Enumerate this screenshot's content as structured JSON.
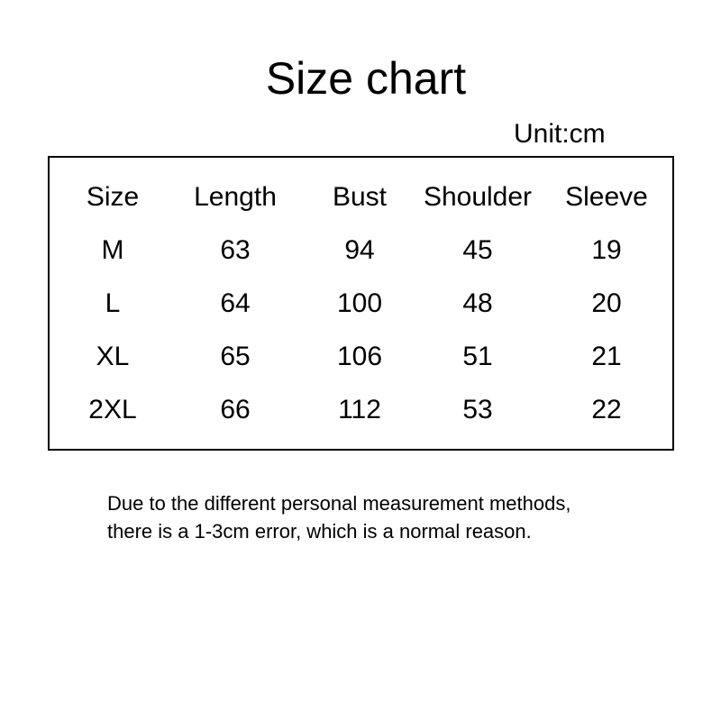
{
  "title": "Size chart",
  "unit": "Unit:cm",
  "table": {
    "headers": [
      "Size",
      "Length",
      "Bust",
      "Shoulder",
      "Sleeve"
    ],
    "rows": [
      [
        "M",
        "63",
        "94",
        "45",
        "19"
      ],
      [
        "L",
        "64",
        "100",
        "48",
        "20"
      ],
      [
        "XL",
        "65",
        "106",
        "51",
        "21"
      ],
      [
        "2XL",
        "66",
        "112",
        "53",
        "22"
      ]
    ]
  },
  "note": [
    "Due to the different personal measurement methods,",
    "there is a 1-3cm error, which is a normal reason."
  ]
}
